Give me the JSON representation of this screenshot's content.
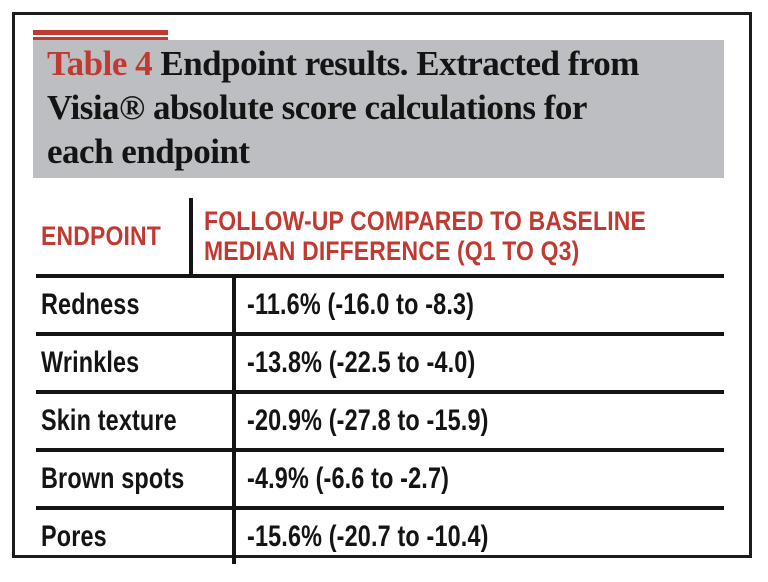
{
  "title": {
    "label": "Table 4",
    "line1": "Endpoint results. Extracted from",
    "line2": "Visia® absolute score calculations for",
    "line3": "each endpoint"
  },
  "table": {
    "header": {
      "endpoint": "ENDPOINT",
      "value_line1": "FOLLOW-UP COMPARED TO BASELINE",
      "value_line2": "MEDIAN DIFFERENCE (Q1 TO Q3)"
    },
    "rows": [
      {
        "endpoint": "Redness",
        "value": "-11.6% (-16.0 to -8.3)"
      },
      {
        "endpoint": "Wrinkles",
        "value": "-13.8% (-22.5 to -4.0)"
      },
      {
        "endpoint": "Skin texture",
        "value": "-20.9% (-27.8 to -15.9)"
      },
      {
        "endpoint": "Brown spots",
        "value": "-4.9% (-6.6 to -2.7)"
      },
      {
        "endpoint": "Pores",
        "value": "-15.6% (-20.7 to -10.4)"
      }
    ]
  },
  "chart_data": {
    "type": "table",
    "title": "Table 4 Endpoint results. Extracted from Visia® absolute score calculations for each endpoint",
    "columns": [
      "ENDPOINT",
      "FOLLOW-UP COMPARED TO BASELINE MEDIAN DIFFERENCE (Q1 TO Q3)"
    ],
    "rows": [
      [
        "Redness",
        "-11.6% (-16.0 to -8.3)"
      ],
      [
        "Wrinkles",
        "-13.8% (-22.5 to -4.0)"
      ],
      [
        "Skin texture",
        "-20.9% (-27.8 to -15.9)"
      ],
      [
        "Brown spots",
        "-4.9% (-6.6 to -2.7)"
      ],
      [
        "Pores",
        "-15.6% (-20.7 to -10.4)"
      ]
    ]
  },
  "colors": {
    "accent_red": "#c13a31",
    "header_gray": "#bcbec2",
    "text_black": "#141414"
  }
}
